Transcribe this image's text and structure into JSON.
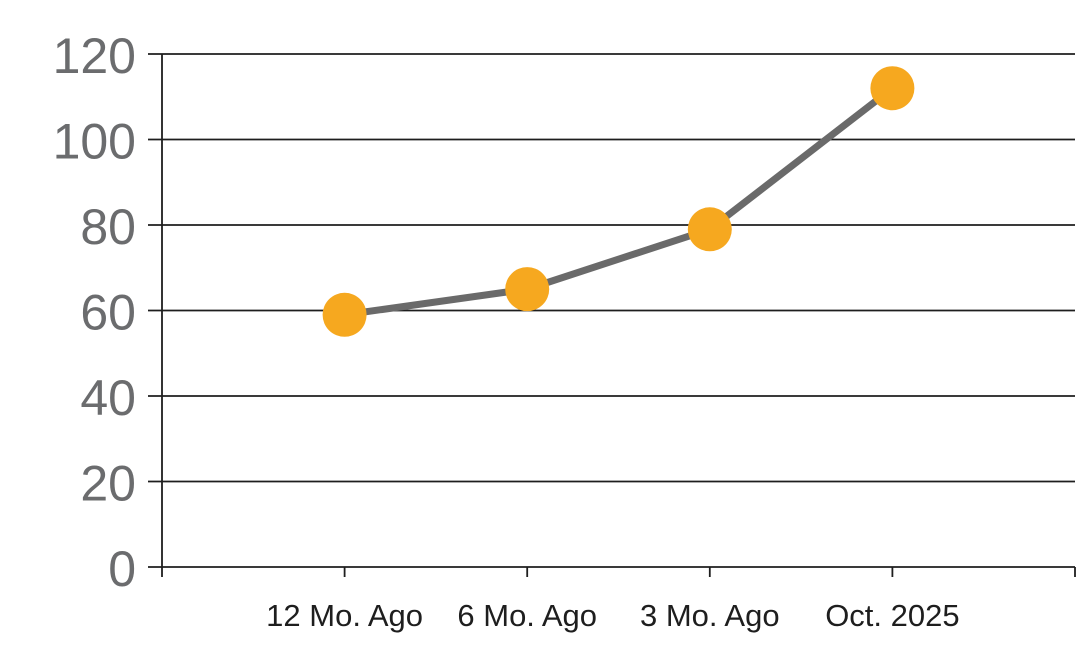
{
  "chart_data": {
    "type": "line",
    "categories": [
      "12 Mo. Ago",
      "6 Mo. Ago",
      "3 Mo. Ago",
      "Oct. 2025"
    ],
    "values": [
      59,
      65,
      79,
      112
    ],
    "title": "",
    "xlabel": "",
    "ylabel": "",
    "ylim": [
      0,
      120
    ],
    "ytick_interval": 20,
    "ytick_labels": [
      "0",
      "20",
      "40",
      "60",
      "80",
      "100",
      "120"
    ],
    "grid": true,
    "legend_position": "none",
    "colors": {
      "marker": "#F6A81F",
      "line": "#6A6A6A",
      "gridline": "#1E1E1E",
      "axis": "#1E1E1E",
      "ytick_label": "#6B6C6E",
      "xtick_label": "#1E1E1E",
      "background": "#FFFFFF"
    }
  }
}
